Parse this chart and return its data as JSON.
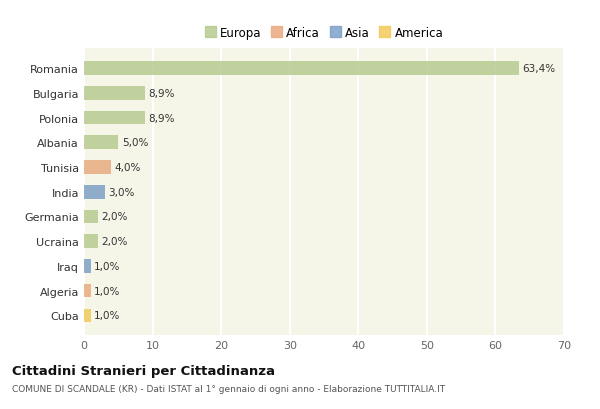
{
  "countries": [
    "Romania",
    "Bulgaria",
    "Polonia",
    "Albania",
    "Tunisia",
    "India",
    "Germania",
    "Ucraina",
    "Iraq",
    "Algeria",
    "Cuba"
  ],
  "values": [
    63.4,
    8.9,
    8.9,
    5.0,
    4.0,
    3.0,
    2.0,
    2.0,
    1.0,
    1.0,
    1.0
  ],
  "labels": [
    "63,4%",
    "8,9%",
    "8,9%",
    "5,0%",
    "4,0%",
    "3,0%",
    "2,0%",
    "2,0%",
    "1,0%",
    "1,0%",
    "1,0%"
  ],
  "colors": [
    "#b5c98e",
    "#b5c98e",
    "#b5c98e",
    "#b5c98e",
    "#e8a87c",
    "#7a9cc5",
    "#b5c98e",
    "#b5c98e",
    "#7a9cc5",
    "#e8a87c",
    "#f0c955"
  ],
  "legend_labels": [
    "Europa",
    "Africa",
    "Asia",
    "America"
  ],
  "legend_colors": [
    "#b5c98e",
    "#e8a87c",
    "#7a9cc5",
    "#f0c955"
  ],
  "title": "Cittadini Stranieri per Cittadinanza",
  "subtitle": "COMUNE DI SCANDALE (KR) - Dati ISTAT al 1° gennaio di ogni anno - Elaborazione TUTTITALIA.IT",
  "xlim": [
    0,
    70
  ],
  "xticks": [
    0,
    10,
    20,
    30,
    40,
    50,
    60,
    70
  ],
  "background_color": "#ffffff",
  "plot_bg_color": "#f5f5e8",
  "grid_color": "#ffffff",
  "bar_height": 0.55
}
